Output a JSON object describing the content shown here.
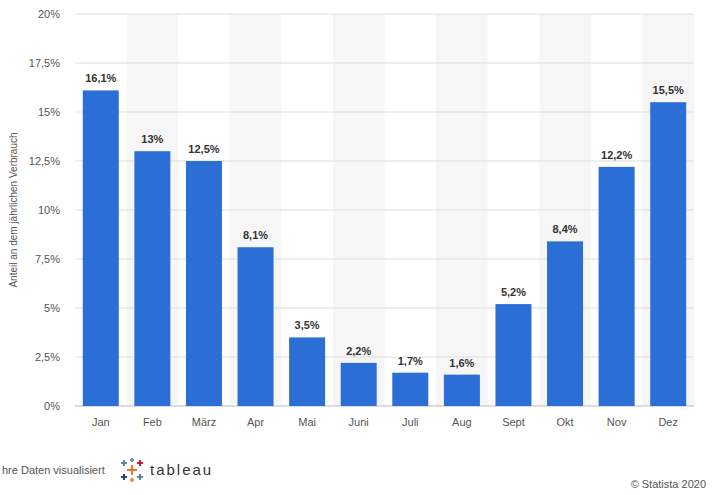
{
  "chart_data": {
    "type": "bar",
    "y_label": "Anteil an dem jährlichen Verbrauch",
    "categories": [
      "Jan",
      "Feb",
      "März",
      "Apr",
      "Mai",
      "Juni",
      "Juli",
      "Aug",
      "Sept",
      "Okt",
      "Nov",
      "Dez"
    ],
    "values": [
      16.1,
      13,
      12.5,
      8.1,
      3.5,
      2.2,
      1.7,
      1.6,
      5.2,
      8.4,
      12.2,
      15.5
    ],
    "value_labels": [
      "16,1%",
      "13%",
      "12,5%",
      "8,1%",
      "3,5%",
      "2,2%",
      "1,7%",
      "1,6%",
      "5,2%",
      "8,4%",
      "12,2%",
      "15,5%"
    ],
    "color": "#2b6fd6",
    "ylim": [
      0,
      20
    ],
    "yticks": [
      {
        "value": 0,
        "label": "0%"
      },
      {
        "value": 2.5,
        "label": "2,5%"
      },
      {
        "value": 5,
        "label": "5%"
      },
      {
        "value": 7.5,
        "label": "7,5%"
      },
      {
        "value": 10,
        "label": "10%"
      },
      {
        "value": 12.5,
        "label": "12,5%"
      },
      {
        "value": 15,
        "label": "15%"
      },
      {
        "value": 17.5,
        "label": "17,5%"
      },
      {
        "value": 20,
        "label": "20%"
      }
    ],
    "grid": true,
    "data_labels": true,
    "credit": "hre Daten visualisiert",
    "credit_logo": "tableau",
    "source": "© Statista 2020"
  }
}
